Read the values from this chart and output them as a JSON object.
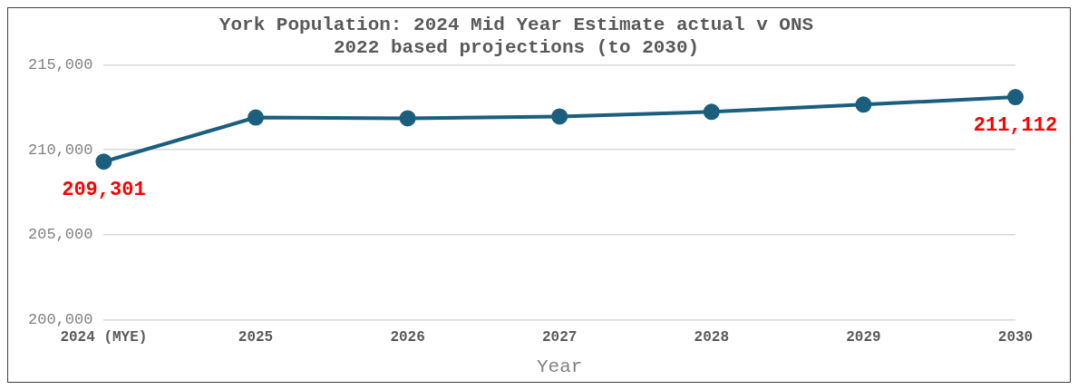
{
  "chart_data": {
    "type": "line",
    "title": "York Population: 2024 Mid Year Estimate actual v ONS 2022 based projections (to 2030)",
    "xlabel": "Year",
    "categories": [
      "2024 (MYE)",
      "2025",
      "2026",
      "2027",
      "2028",
      "2029",
      "2030"
    ],
    "series": [
      {
        "color": "#1b5e7e",
        "values": [
          209301,
          211900,
          211850,
          211960,
          212230,
          212660,
          213100
        ]
      }
    ],
    "ylim": [
      200000,
      215000
    ],
    "yticks": [
      {
        "value": 200000,
        "label": "200,000"
      },
      {
        "value": 205000,
        "label": "205,000"
      },
      {
        "value": 210000,
        "label": "210,000"
      },
      {
        "value": 215000,
        "label": "215,000"
      }
    ],
    "grid": "y",
    "marker": "circle",
    "line_style": "solid",
    "legend": false,
    "annotations": [
      {
        "text": "209,301",
        "x": "2024 (MYE)",
        "y": 209301
      },
      {
        "text": "211,112",
        "x": "2030",
        "y": 213100
      }
    ]
  }
}
